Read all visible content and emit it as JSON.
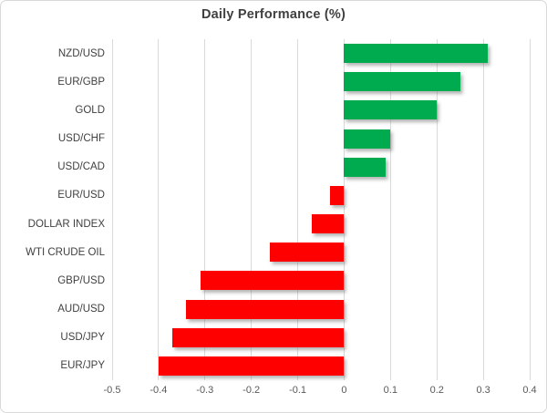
{
  "chart_data": {
    "type": "bar",
    "orientation": "horizontal",
    "title": "Daily Performance (%)",
    "categories": [
      "NZD/USD",
      "EUR/GBP",
      "GOLD",
      "USD/CHF",
      "USD/CAD",
      "EUR/USD",
      "DOLLAR INDEX",
      "WTI CRUDE OIL",
      "GBP/USD",
      "AUD/USD",
      "USD/JPY",
      "EUR/JPY"
    ],
    "values": [
      0.31,
      0.25,
      0.2,
      0.1,
      0.09,
      -0.03,
      -0.07,
      -0.16,
      -0.31,
      -0.34,
      -0.37,
      -0.4
    ],
    "xlabel": "",
    "ylabel": "",
    "xlim": [
      -0.5,
      0.4
    ],
    "x_ticks": [
      -0.5,
      -0.4,
      -0.3,
      -0.2,
      -0.1,
      0,
      0.1,
      0.2,
      0.3,
      0.4
    ],
    "x_tick_labels": [
      "-0.5",
      "-0.4",
      "-0.3",
      "-0.2",
      "-0.1",
      "0",
      "0.1",
      "0.2",
      "0.3",
      "0.4"
    ],
    "grid": true,
    "legend": false,
    "colors": {
      "positive": "#00AB4F",
      "negative": "#FF0000",
      "gridline": "#D9D9D9",
      "title_text": "#404040",
      "tick_text": "#595959",
      "category_text": "#404040",
      "border": "#D9D9D9",
      "background": "#FFFFFF"
    }
  }
}
